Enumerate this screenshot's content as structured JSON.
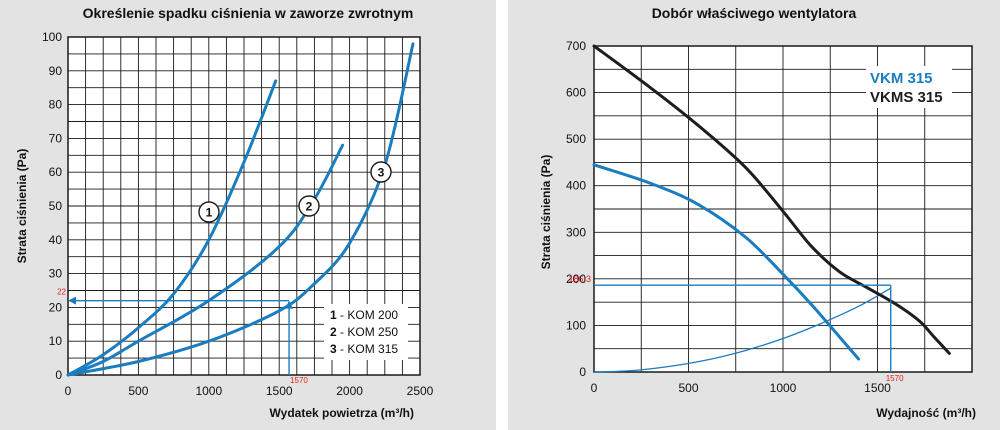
{
  "colors": {
    "panel_bg": "#e3e3e3",
    "grid": "#1a1a1a",
    "series_blue": "#1a7dc0",
    "series_black": "#1d1d1d",
    "marker_red": "#e02020"
  },
  "chart_data": [
    {
      "type": "line",
      "title": "Określenie spadku ciśnienia w zaworze zwrotnym",
      "xlabel": "Wydatek powietrza (m³/h)",
      "ylabel": "Strata ciśnienia (Pa)",
      "xlim": [
        0,
        2500
      ],
      "ylim": [
        0,
        100
      ],
      "x_ticks": [
        "0",
        "500",
        "1000",
        "1500",
        "2000",
        "2500"
      ],
      "y_ticks": [
        "0",
        "10",
        "20",
        "30",
        "40",
        "50",
        "60",
        "70",
        "80",
        "90",
        "100"
      ],
      "grid": true,
      "series": [
        {
          "name": "1",
          "values": [
            [
              0,
              0
            ],
            [
              250,
              6
            ],
            [
              500,
              14
            ],
            [
              750,
              24
            ],
            [
              1000,
              40
            ],
            [
              1250,
              63
            ],
            [
              1475,
              87
            ]
          ]
        },
        {
          "name": "2",
          "values": [
            [
              0,
              0
            ],
            [
              250,
              4
            ],
            [
              500,
              10
            ],
            [
              1000,
              22
            ],
            [
              1500,
              38
            ],
            [
              1750,
              52
            ],
            [
              1950,
              68
            ]
          ]
        },
        {
          "name": "3",
          "values": [
            [
              0,
              0
            ],
            [
              500,
              4
            ],
            [
              1000,
              10
            ],
            [
              1500,
              19
            ],
            [
              1750,
              27
            ],
            [
              2000,
              39
            ],
            [
              2250,
              62
            ],
            [
              2450,
              98
            ]
          ]
        }
      ],
      "legend": {
        "position": "bottom-right",
        "entries": [
          {
            "key": "1",
            "label": " - KOM 200"
          },
          {
            "key": "2",
            "label": " - KOM 250"
          },
          {
            "key": "3",
            "label": " - KOM 315"
          }
        ]
      },
      "annotations": {
        "operating_x": 1570,
        "operating_y": 22,
        "x_label": "1570",
        "y_label": "22"
      }
    },
    {
      "type": "line",
      "title": "Dobór właściwego wentylatora",
      "xlabel": "Wydajność (m³/h)",
      "ylabel": "Strata ciśnienia (Pa)",
      "xlim": [
        0,
        2000
      ],
      "ylim": [
        0,
        700
      ],
      "x_ticks": [
        "0",
        "500",
        "1000",
        "1500"
      ],
      "y_ticks": [
        "0",
        "100",
        "200",
        "300",
        "400",
        "500",
        "600",
        "700"
      ],
      "grid": true,
      "series": [
        {
          "name": "VKM 315",
          "values": [
            [
              0,
              445
            ],
            [
              300,
              405
            ],
            [
              550,
              360
            ],
            [
              800,
              290
            ],
            [
              1000,
              210
            ],
            [
              1150,
              145
            ],
            [
              1300,
              75
            ],
            [
              1400,
              28
            ]
          ]
        },
        {
          "name": "VKMS 315",
          "values": [
            [
              0,
              700
            ],
            [
              300,
              610
            ],
            [
              550,
              530
            ],
            [
              800,
              440
            ],
            [
              1000,
              345
            ],
            [
              1150,
              270
            ],
            [
              1300,
              215
            ],
            [
              1450,
              180
            ],
            [
              1600,
              145
            ],
            [
              1720,
              110
            ],
            [
              1800,
              75
            ],
            [
              1880,
              40
            ]
          ]
        }
      ],
      "system_curve": [
        [
          0,
          0
        ],
        [
          200,
          3
        ],
        [
          400,
          12
        ],
        [
          600,
          26
        ],
        [
          800,
          46
        ],
        [
          1000,
          72
        ],
        [
          1200,
          104
        ],
        [
          1400,
          141
        ],
        [
          1570,
          180
        ]
      ],
      "legend": {
        "position": "top-right",
        "entries": [
          "VKM 315",
          "VKMS 315"
        ]
      },
      "annotations": {
        "operating_x": 1570,
        "operating_y": 186.3,
        "x_label": "1570",
        "y_label": "186,3"
      }
    }
  ]
}
